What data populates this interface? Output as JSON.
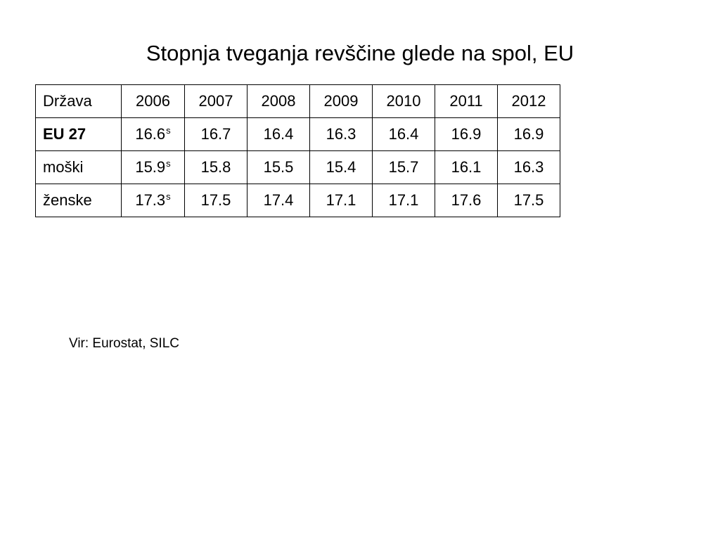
{
  "title": "Stopnja tveganja revščine glede na spol, EU",
  "table": {
    "header": [
      "Država",
      "2006",
      "2007",
      "2008",
      "2009",
      "2010",
      "2011",
      "2012"
    ],
    "rows": [
      {
        "label": "EU 27",
        "bold": true,
        "values": [
          "16.6",
          "16.7",
          "16.4",
          "16.3",
          "16.4",
          "16.9",
          "16.9"
        ],
        "first_flag": "s"
      },
      {
        "label": "moški",
        "bold": false,
        "values": [
          "15.9",
          "15.8",
          "15.5",
          "15.4",
          "15.7",
          "16.1",
          "16.3"
        ],
        "first_flag": "s"
      },
      {
        "label": "ženske",
        "bold": false,
        "values": [
          "17.3",
          "17.5",
          "17.4",
          "17.1",
          "17.1",
          "17.6",
          "17.5"
        ],
        "first_flag": "s"
      }
    ]
  },
  "source": "Vir: Eurostat, SILC"
}
